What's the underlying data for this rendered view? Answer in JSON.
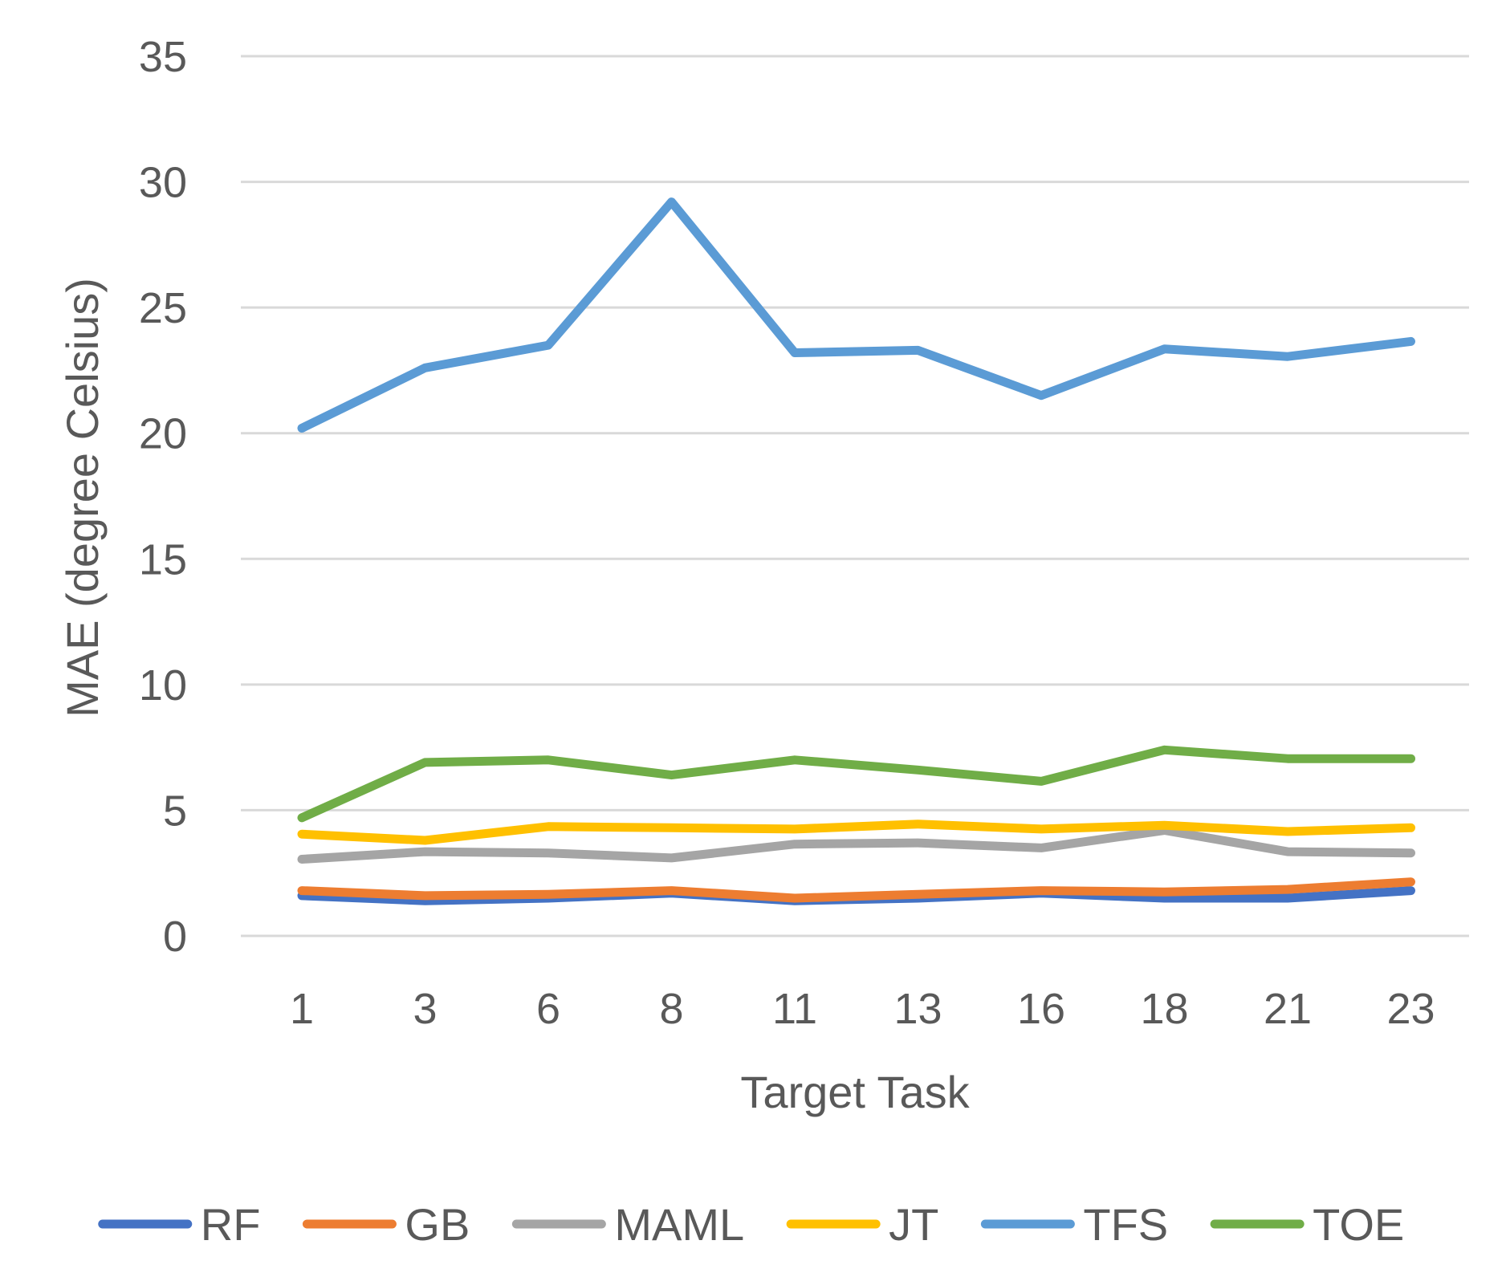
{
  "chart_data": {
    "type": "line",
    "title": "",
    "xlabel": "Target Task",
    "ylabel": "MAE (degree Celsius)",
    "ylim": [
      0,
      35
    ],
    "yticks": [
      0,
      5,
      10,
      15,
      20,
      25,
      30,
      35
    ],
    "grid": true,
    "legend_position": "bottom",
    "categories": [
      "1",
      "3",
      "6",
      "8",
      "11",
      "13",
      "16",
      "18",
      "21",
      "23"
    ],
    "series": [
      {
        "name": "RF",
        "color": "#4472c4",
        "values": [
          1.6,
          1.4,
          1.5,
          1.7,
          1.4,
          1.5,
          1.7,
          1.5,
          1.5,
          1.8
        ]
      },
      {
        "name": "GB",
        "color": "#ed7d31",
        "values": [
          1.8,
          1.6,
          1.65,
          1.8,
          1.5,
          1.65,
          1.8,
          1.75,
          1.85,
          2.15
        ]
      },
      {
        "name": "MAML",
        "color": "#a5a5a5",
        "values": [
          3.05,
          3.35,
          3.3,
          3.1,
          3.65,
          3.7,
          3.5,
          4.2,
          3.35,
          3.3
        ]
      },
      {
        "name": "JT",
        "color": "#ffc000",
        "values": [
          4.05,
          3.8,
          4.35,
          4.3,
          4.25,
          4.45,
          4.25,
          4.4,
          4.15,
          4.3
        ]
      },
      {
        "name": "TFS",
        "color": "#5b9bd5",
        "values": [
          20.2,
          22.6,
          23.5,
          29.2,
          23.2,
          23.3,
          21.5,
          23.35,
          23.05,
          23.65
        ]
      },
      {
        "name": "TOE",
        "color": "#70ad47",
        "values": [
          4.7,
          6.9,
          7.0,
          6.4,
          7.0,
          6.6,
          6.15,
          7.4,
          7.05,
          7.05
        ]
      }
    ]
  }
}
